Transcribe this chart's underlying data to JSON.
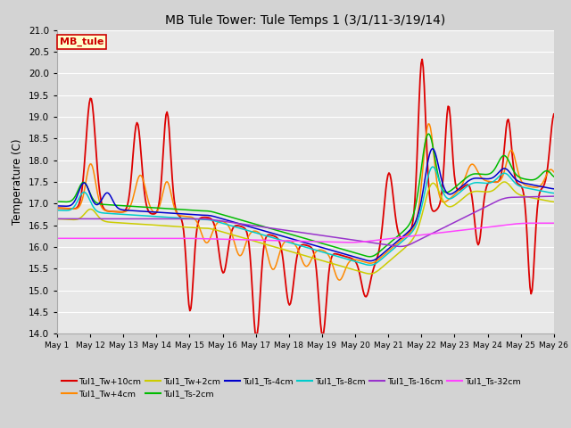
{
  "title": "MB Tule Tower: Tule Temps 1 (3/1/11-3/19/14)",
  "ylabel": "Temperature (C)",
  "ylim": [
    14.0,
    21.0
  ],
  "yticks": [
    14.0,
    14.5,
    15.0,
    15.5,
    16.0,
    16.5,
    17.0,
    17.5,
    18.0,
    18.5,
    19.0,
    19.5,
    20.0,
    20.5,
    21.0
  ],
  "bg_color": "#d3d3d3",
  "plot_bg_color": "#e8e8e8",
  "grid_color": "#ffffff",
  "title_fontsize": 10,
  "series": [
    {
      "label": "Tul1_Tw+10cm",
      "color": "#dd0000",
      "lw": 1.3
    },
    {
      "label": "Tul1_Tw+4cm",
      "color": "#ff8800",
      "lw": 1.1
    },
    {
      "label": "Tul1_Tw+2cm",
      "color": "#cccc00",
      "lw": 1.1
    },
    {
      "label": "Tul1_Ts-2cm",
      "color": "#00bb00",
      "lw": 1.1
    },
    {
      "label": "Tul1_Ts-4cm",
      "color": "#0000cc",
      "lw": 1.1
    },
    {
      "label": "Tul1_Ts-8cm",
      "color": "#00cccc",
      "lw": 1.1
    },
    {
      "label": "Tul1_Ts-16cm",
      "color": "#9933cc",
      "lw": 1.1
    },
    {
      "label": "Tul1_Ts-32cm",
      "color": "#ff44ff",
      "lw": 1.1
    }
  ],
  "legend_box": {
    "label": "MB_tule",
    "facecolor": "#ffffcc",
    "edgecolor": "#cc0000",
    "text_color": "#cc0000"
  },
  "xtick_labels": [
    "May 1",
    "May 12",
    "May 13",
    "May 14",
    "May 15",
    "May 16",
    "May 17",
    "May 18",
    "May 19",
    "May 20",
    "May 21",
    "May 22",
    "May 23",
    "May 24",
    "May 25",
    "May 26"
  ],
  "n_points": 480
}
